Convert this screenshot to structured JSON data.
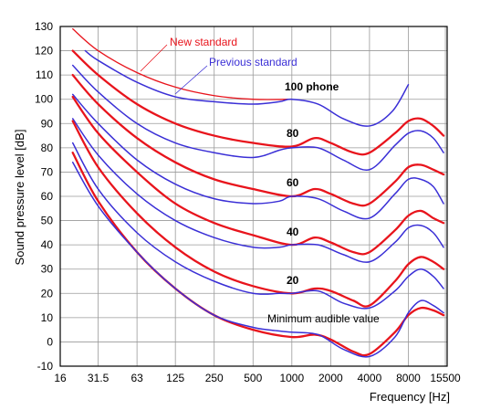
{
  "chart_data": {
    "type": "line",
    "title": "",
    "xlabel": "Frequency [Hz]",
    "ylabel": "Sound pressure level [dB]",
    "x_scale": "log2",
    "xlim": [
      16,
      16000
    ],
    "ylim": [
      -10,
      130
    ],
    "x_ticks": [
      16,
      31.5,
      63,
      125,
      250,
      500,
      1000,
      2000,
      4000,
      8000,
      15500
    ],
    "x_tick_labels": [
      "16",
      "31.5",
      "63",
      "125",
      "250",
      "500",
      "1000",
      "2000",
      "4000",
      "8000",
      "15500"
    ],
    "y_ticks": [
      -10,
      0,
      10,
      20,
      30,
      40,
      50,
      60,
      70,
      80,
      90,
      100,
      110,
      120,
      130
    ],
    "grid": true,
    "annotations": {
      "new_standard": "New standard",
      "previous_standard": "Previous standard",
      "minimum_audible": "Minimum audible value"
    },
    "level_labels": [
      "100 phone",
      "80",
      "60",
      "40",
      "20"
    ],
    "colors": {
      "new": "#e8141c",
      "previous": "#3a2fd6"
    },
    "series": [
      {
        "group": "new",
        "phon": 100,
        "points": [
          [
            20,
            129
          ],
          [
            31.5,
            120
          ],
          [
            63,
            111
          ],
          [
            125,
            105
          ],
          [
            250,
            101.5
          ],
          [
            500,
            100
          ],
          [
            1000,
            100
          ]
        ]
      },
      {
        "group": "previous",
        "phon": 100,
        "points": [
          [
            25,
            120
          ],
          [
            31.5,
            116
          ],
          [
            63,
            107
          ],
          [
            125,
            101
          ],
          [
            250,
            99
          ],
          [
            500,
            98
          ],
          [
            800,
            99
          ],
          [
            1000,
            100
          ],
          [
            1600,
            98
          ],
          [
            2500,
            92
          ],
          [
            4000,
            89
          ],
          [
            6000,
            95
          ],
          [
            8000,
            106
          ]
        ]
      },
      {
        "group": "new",
        "phon": 80,
        "points": [
          [
            20,
            120
          ],
          [
            31.5,
            110
          ],
          [
            63,
            98
          ],
          [
            125,
            90
          ],
          [
            250,
            85
          ],
          [
            500,
            82
          ],
          [
            1000,
            80.5
          ],
          [
            1500,
            84
          ],
          [
            2000,
            82
          ],
          [
            3000,
            78
          ],
          [
            4000,
            78
          ],
          [
            6300,
            86
          ],
          [
            8000,
            91
          ],
          [
            10000,
            92
          ],
          [
            12500,
            89
          ],
          [
            15000,
            85
          ]
        ]
      },
      {
        "group": "previous",
        "phon": 80,
        "points": [
          [
            20,
            114
          ],
          [
            31.5,
            103
          ],
          [
            63,
            90
          ],
          [
            125,
            82
          ],
          [
            250,
            78
          ],
          [
            500,
            76
          ],
          [
            800,
            79
          ],
          [
            1000,
            80
          ],
          [
            1600,
            80
          ],
          [
            2500,
            75
          ],
          [
            4000,
            71
          ],
          [
            6300,
            81
          ],
          [
            8000,
            86
          ],
          [
            10000,
            87
          ],
          [
            12500,
            84
          ],
          [
            15000,
            78
          ]
        ]
      },
      {
        "group": "new",
        "phon": 60,
        "points": [
          [
            20,
            110
          ],
          [
            31.5,
            98
          ],
          [
            63,
            84
          ],
          [
            125,
            74
          ],
          [
            250,
            67
          ],
          [
            500,
            63
          ],
          [
            1000,
            60
          ],
          [
            1500,
            63
          ],
          [
            2000,
            61
          ],
          [
            3000,
            57
          ],
          [
            4000,
            57
          ],
          [
            6300,
            66
          ],
          [
            8000,
            72
          ],
          [
            10000,
            73
          ],
          [
            12500,
            71
          ],
          [
            15000,
            69
          ]
        ]
      },
      {
        "group": "previous",
        "phon": 60,
        "points": [
          [
            20,
            102
          ],
          [
            31.5,
            90
          ],
          [
            63,
            75
          ],
          [
            125,
            65
          ],
          [
            250,
            59
          ],
          [
            500,
            57
          ],
          [
            800,
            58
          ],
          [
            1000,
            60
          ],
          [
            1600,
            59
          ],
          [
            2500,
            54
          ],
          [
            4000,
            51
          ],
          [
            6300,
            61
          ],
          [
            8000,
            67
          ],
          [
            10000,
            67
          ],
          [
            12500,
            64
          ],
          [
            15000,
            57
          ]
        ]
      },
      {
        "group": "new",
        "phon": 40,
        "points": [
          [
            20,
            101
          ],
          [
            31.5,
            86
          ],
          [
            63,
            70
          ],
          [
            125,
            57
          ],
          [
            250,
            49
          ],
          [
            500,
            44
          ],
          [
            1000,
            40
          ],
          [
            1500,
            43
          ],
          [
            2000,
            41
          ],
          [
            3000,
            37
          ],
          [
            4000,
            37
          ],
          [
            6300,
            46
          ],
          [
            8000,
            52
          ],
          [
            10000,
            54
          ],
          [
            12500,
            51
          ],
          [
            15000,
            49
          ]
        ]
      },
      {
        "group": "previous",
        "phon": 40,
        "points": [
          [
            20,
            92
          ],
          [
            31.5,
            77
          ],
          [
            63,
            61
          ],
          [
            125,
            50
          ],
          [
            250,
            43
          ],
          [
            500,
            39
          ],
          [
            800,
            39
          ],
          [
            1000,
            40
          ],
          [
            1600,
            40
          ],
          [
            2500,
            36
          ],
          [
            4000,
            33
          ],
          [
            6300,
            41
          ],
          [
            8000,
            47
          ],
          [
            10000,
            48
          ],
          [
            12500,
            45
          ],
          [
            15000,
            39
          ]
        ]
      },
      {
        "group": "new",
        "phon": 20,
        "points": [
          [
            20,
            91
          ],
          [
            31.5,
            72
          ],
          [
            63,
            53
          ],
          [
            125,
            39
          ],
          [
            250,
            29
          ],
          [
            500,
            23
          ],
          [
            1000,
            20
          ],
          [
            1500,
            22
          ],
          [
            2000,
            21
          ],
          [
            3000,
            17
          ],
          [
            4000,
            15
          ],
          [
            6300,
            25
          ],
          [
            8000,
            32
          ],
          [
            10000,
            35
          ],
          [
            12500,
            33
          ],
          [
            15000,
            30
          ]
        ]
      },
      {
        "group": "previous",
        "phon": 20,
        "points": [
          [
            20,
            82
          ],
          [
            31.5,
            63
          ],
          [
            63,
            45
          ],
          [
            125,
            33
          ],
          [
            250,
            25
          ],
          [
            500,
            20
          ],
          [
            800,
            20
          ],
          [
            1000,
            20
          ],
          [
            1600,
            21
          ],
          [
            2500,
            16
          ],
          [
            4000,
            14
          ],
          [
            6300,
            21
          ],
          [
            8000,
            27
          ],
          [
            10000,
            30
          ],
          [
            12500,
            27
          ],
          [
            15000,
            22
          ]
        ]
      },
      {
        "group": "new",
        "phon": "minimum audible value",
        "points": [
          [
            20,
            78
          ],
          [
            31.5,
            58
          ],
          [
            63,
            37
          ],
          [
            125,
            22
          ],
          [
            250,
            11
          ],
          [
            500,
            5
          ],
          [
            1000,
            2
          ],
          [
            1500,
            3
          ],
          [
            2000,
            1
          ],
          [
            3000,
            -4
          ],
          [
            4000,
            -5
          ],
          [
            6300,
            4
          ],
          [
            8000,
            11
          ],
          [
            10000,
            14
          ],
          [
            12500,
            13
          ],
          [
            15000,
            11
          ]
        ]
      },
      {
        "group": "previous",
        "phon": "minimum audible value",
        "points": [
          [
            20,
            74
          ],
          [
            31.5,
            56
          ],
          [
            63,
            37
          ],
          [
            125,
            22
          ],
          [
            250,
            11
          ],
          [
            500,
            6
          ],
          [
            800,
            4.5
          ],
          [
            1000,
            4
          ],
          [
            1600,
            3
          ],
          [
            2500,
            -3
          ],
          [
            4000,
            -6
          ],
          [
            6300,
            2
          ],
          [
            8000,
            12
          ],
          [
            10000,
            17
          ],
          [
            12500,
            15
          ],
          [
            15000,
            12
          ]
        ]
      }
    ]
  }
}
